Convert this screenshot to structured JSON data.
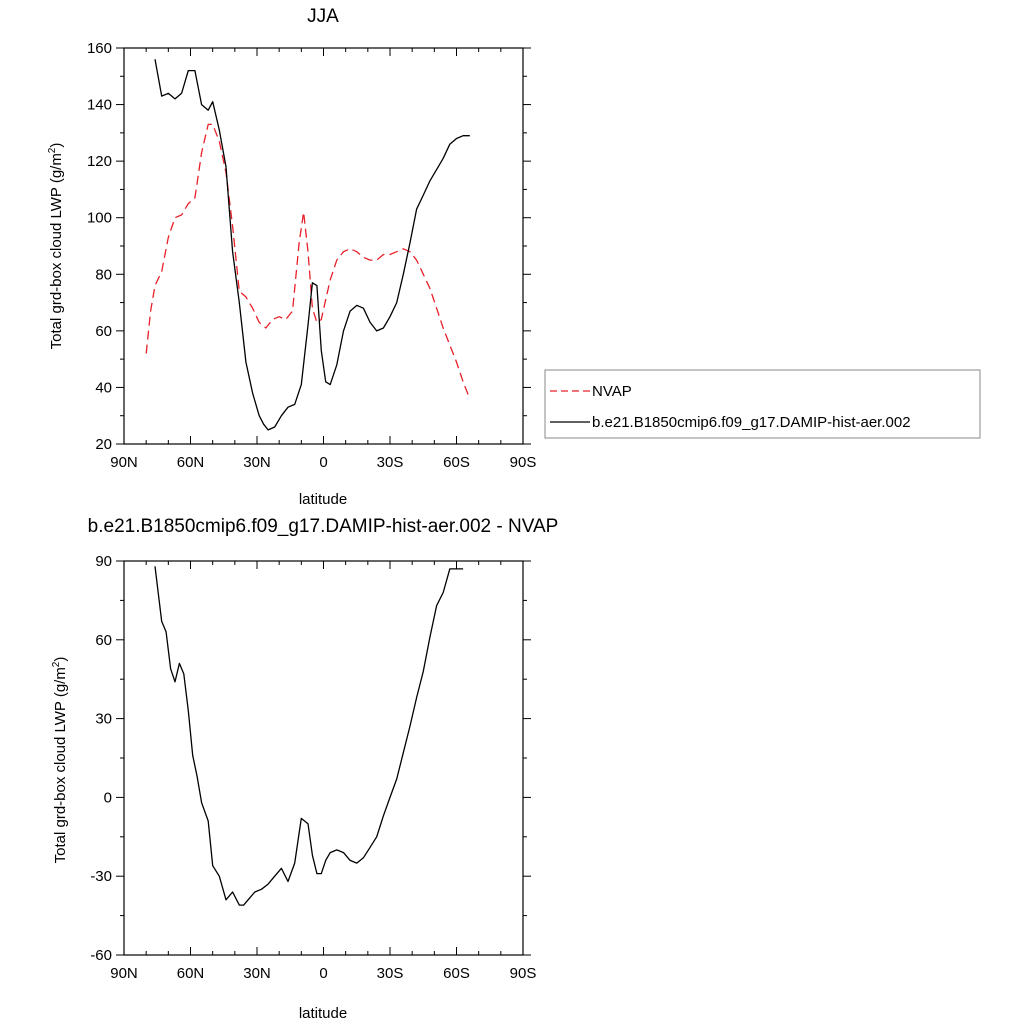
{
  "chart_data": [
    {
      "type": "line",
      "title": "JJA",
      "xlabel": "latitude",
      "ylabel": "Total grd-box cloud LWP (g/m",
      "ylabel_sup": "2",
      "ylabel_close": ")",
      "xlim": [
        90,
        -90
      ],
      "ylim": [
        20,
        160
      ],
      "x_ticks": [
        90,
        60,
        30,
        0,
        -30,
        -60,
        -90
      ],
      "x_tick_labels": [
        "90N",
        "60N",
        "30N",
        "0",
        "30S",
        "60S",
        "90S"
      ],
      "y_ticks": [
        20,
        40,
        60,
        80,
        100,
        120,
        140,
        160
      ],
      "y_tick_labels": [
        "20",
        "40",
        "60",
        "80",
        "100",
        "120",
        "140",
        "160"
      ],
      "legend_position": "right",
      "series": [
        {
          "name": "NVAP",
          "color": "#e8202a",
          "dash": "dashed",
          "x": [
            80,
            78,
            76,
            73,
            70,
            67,
            64,
            61,
            58,
            55,
            52,
            50,
            47,
            44,
            41,
            38,
            35,
            32,
            29,
            26,
            23,
            20,
            17,
            14,
            11,
            9,
            7,
            5,
            3,
            1,
            -1,
            -3,
            -6,
            -9,
            -12,
            -15,
            -18,
            -21,
            -24,
            -27,
            -30,
            -33,
            -36,
            -39,
            -42,
            -45,
            -48,
            -51,
            -54,
            -57,
            -60,
            -63,
            -66
          ],
          "y": [
            52,
            67,
            76,
            81,
            93,
            100,
            101,
            105,
            107,
            123,
            133,
            133,
            127,
            116,
            97,
            74,
            72,
            68,
            63,
            61,
            64,
            65,
            64,
            67,
            91,
            102,
            88,
            68,
            63,
            64,
            71,
            78,
            85,
            88,
            89,
            88,
            86,
            85,
            85,
            87,
            87,
            88,
            89,
            88,
            85,
            80,
            75,
            68,
            61,
            55,
            49,
            42,
            36
          ]
        },
        {
          "name": "b.e21.B1850cmip6.f09_g17.DAMIP-hist-aer.002",
          "color": "#000000",
          "dash": "solid",
          "x": [
            76,
            73,
            70,
            67,
            64,
            61,
            58,
            55,
            52,
            50,
            47,
            44,
            41,
            38,
            35,
            32,
            29,
            27,
            25,
            22,
            19,
            16,
            13,
            10,
            7,
            5,
            3,
            1,
            -1,
            -3,
            -6,
            -9,
            -12,
            -15,
            -18,
            -21,
            -24,
            -27,
            -30,
            -33,
            -36,
            -39,
            -42,
            -45,
            -48,
            -51,
            -54,
            -57,
            -60,
            -63,
            -66
          ],
          "y": [
            156,
            143,
            144,
            142,
            144,
            152,
            152,
            140,
            138,
            141,
            131,
            118,
            88,
            70,
            49,
            38,
            30,
            27,
            25,
            26,
            30,
            33,
            34,
            41,
            62,
            77,
            76,
            53,
            42,
            41,
            48,
            60,
            67,
            69,
            68,
            63,
            60,
            61,
            65,
            70,
            80,
            91,
            103,
            108,
            113,
            117,
            121,
            126,
            128,
            129,
            129
          ]
        }
      ]
    },
    {
      "type": "line",
      "title": "b.e21.B1850cmip6.f09_g17.DAMIP-hist-aer.002 - NVAP",
      "xlabel": "latitude",
      "ylabel": "Total grd-box cloud LWP (g/m",
      "ylabel_sup": "2",
      "ylabel_close": ")",
      "xlim": [
        90,
        -90
      ],
      "ylim": [
        -60,
        90
      ],
      "x_ticks": [
        90,
        60,
        30,
        0,
        -30,
        -60,
        -90
      ],
      "x_tick_labels": [
        "90N",
        "60N",
        "30N",
        "0",
        "30S",
        "60S",
        "90S"
      ],
      "y_ticks": [
        -60,
        -30,
        0,
        30,
        60,
        90
      ],
      "y_tick_labels": [
        "-60",
        "-30",
        "0",
        "30",
        "60",
        "90"
      ],
      "series": [
        {
          "color": "#000000",
          "dash": "solid",
          "x": [
            76,
            73,
            71,
            69,
            67,
            65,
            63,
            61,
            59,
            57,
            55,
            52,
            50,
            47,
            44,
            41,
            38,
            36,
            34,
            31,
            28,
            25,
            22,
            19,
            16,
            13,
            10,
            7,
            5,
            3,
            1,
            -1,
            -3,
            -6,
            -9,
            -12,
            -15,
            -18,
            -21,
            -24,
            -27,
            -30,
            -33,
            -36,
            -39,
            -42,
            -45,
            -48,
            -51,
            -54,
            -57,
            -60,
            -63
          ],
          "y": [
            88,
            67,
            63,
            49,
            44,
            51,
            47,
            33,
            16,
            8,
            -2,
            -9,
            -26,
            -30,
            -39,
            -36,
            -41,
            -41,
            -39,
            -36,
            -35,
            -33,
            -30,
            -27,
            -32,
            -25,
            -8,
            -10,
            -22,
            -29,
            -29,
            -24,
            -21,
            -20,
            -21,
            -24,
            -25,
            -23,
            -19,
            -15,
            -7,
            0,
            7,
            17,
            27,
            38,
            48,
            61,
            73,
            78,
            87,
            87,
            87
          ]
        }
      ]
    }
  ]
}
